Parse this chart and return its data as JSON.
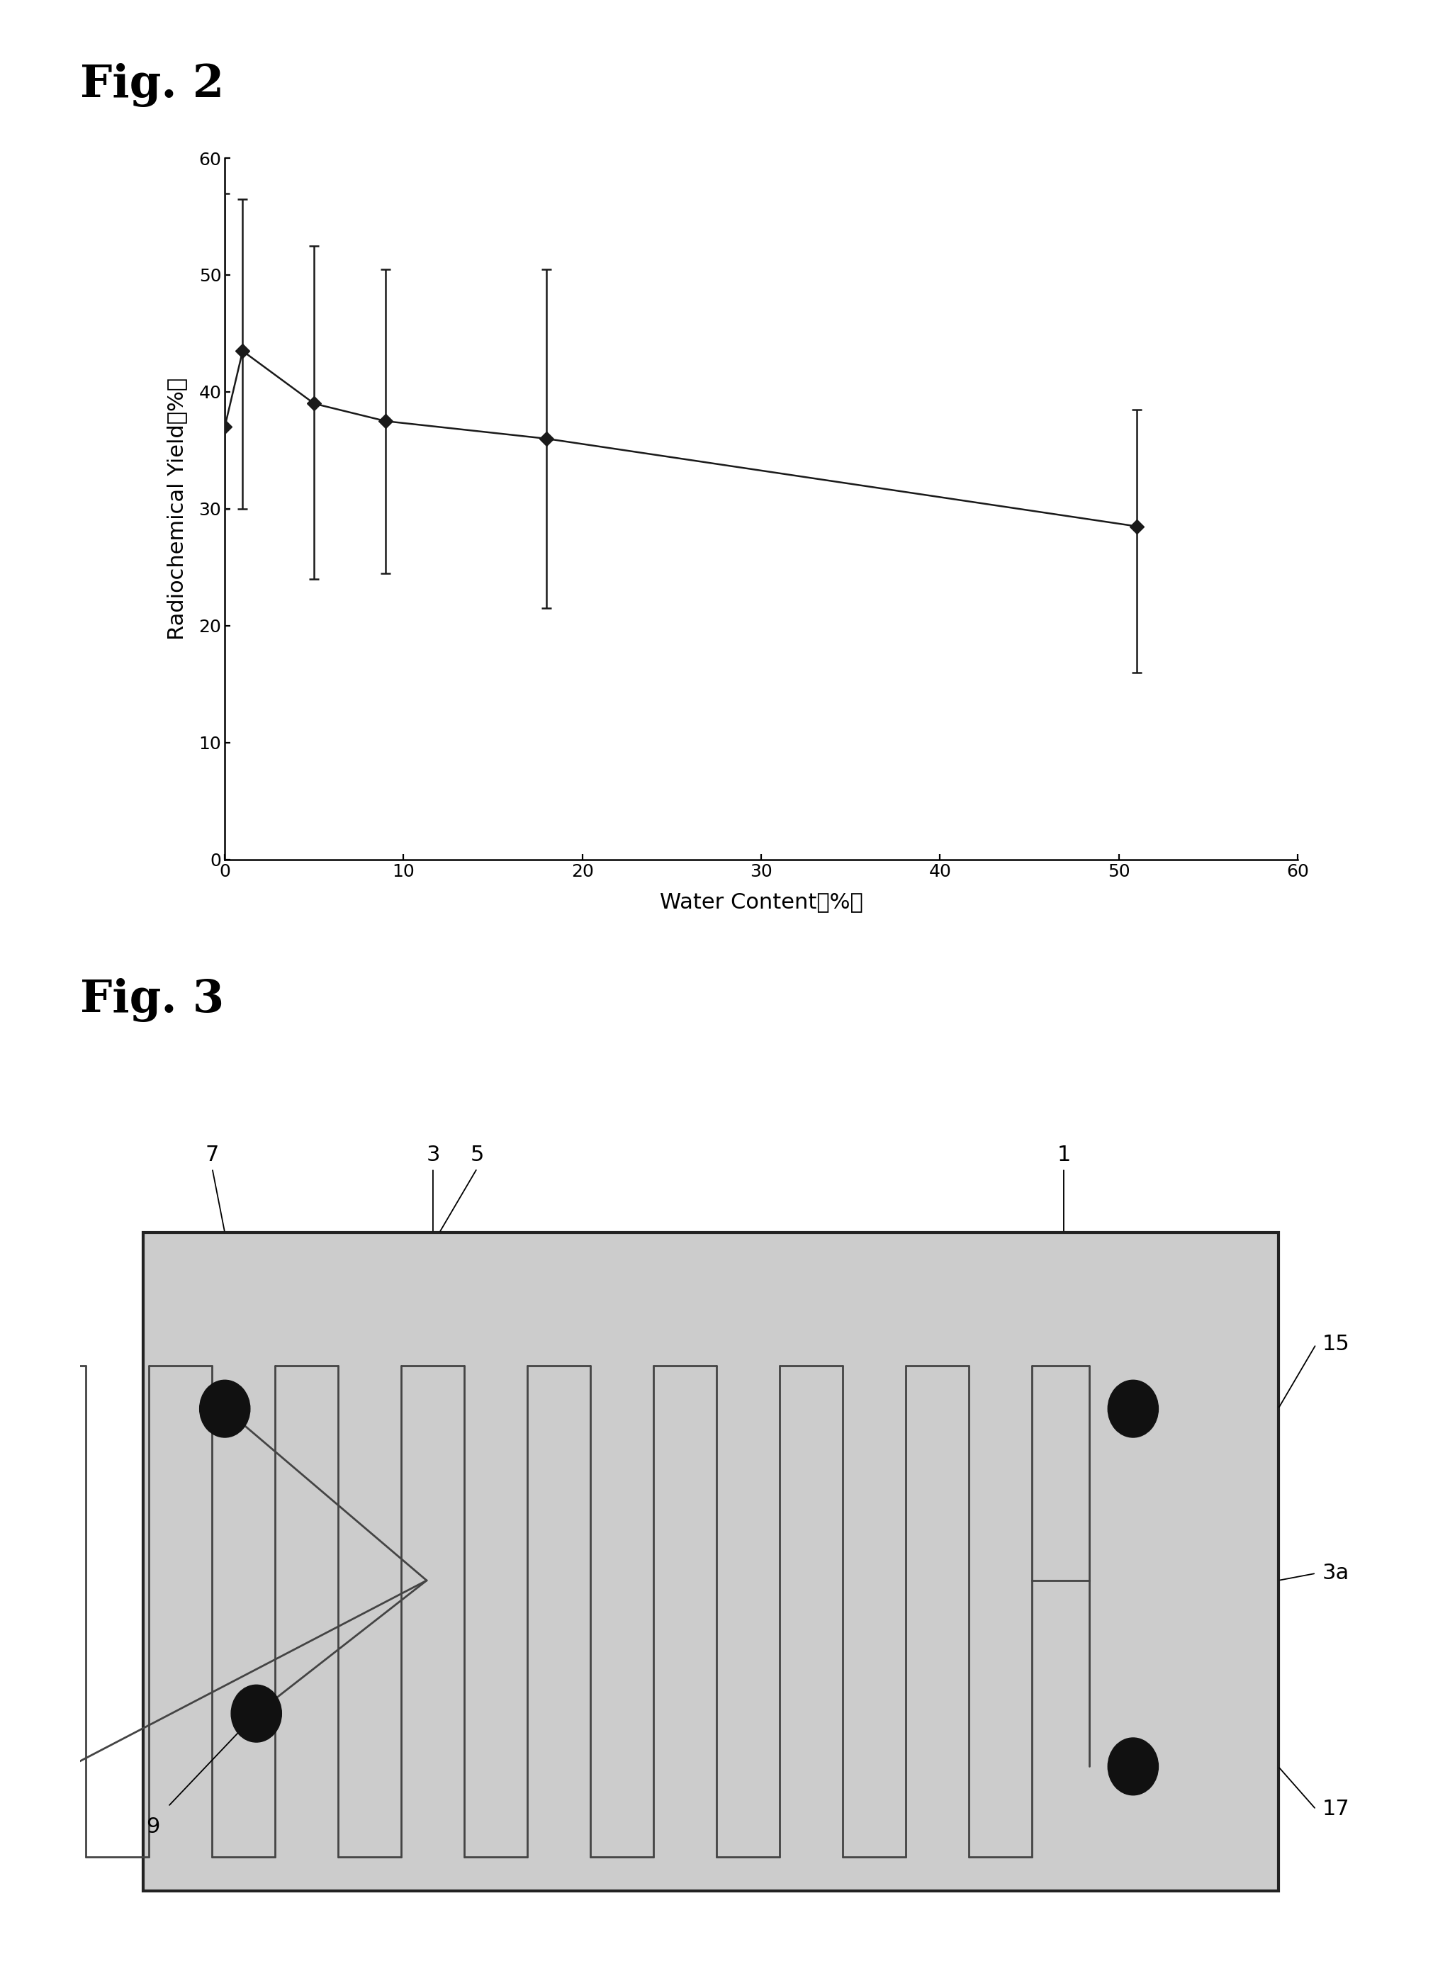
{
  "fig2": {
    "x": [
      0,
      1,
      5,
      9,
      18,
      51
    ],
    "y": [
      37.0,
      43.5,
      39.0,
      37.5,
      36.0,
      28.5
    ],
    "yerr_upper": [
      20.0,
      13.0,
      13.5,
      13.0,
      14.5,
      10.0
    ],
    "yerr_lower": [
      7.0,
      13.5,
      15.0,
      13.0,
      14.5,
      12.5
    ],
    "xlabel": "Water Content（%）",
    "ylabel": "Radiochemical Yield（%）",
    "xlim": [
      0,
      60
    ],
    "ylim": [
      0,
      60
    ],
    "xticks": [
      0,
      10,
      20,
      30,
      40,
      50,
      60
    ],
    "yticks": [
      0,
      10,
      20,
      30,
      40,
      50,
      60
    ],
    "marker_color": "#1a1a1a",
    "fig_label": "Fig. 2"
  },
  "fig3": {
    "fig_label": "Fig. 3",
    "bg_color": "#cccccc",
    "channel_color": "#444444",
    "dot_color": "#111111",
    "border_color": "#222222",
    "label_color": "#111111"
  }
}
